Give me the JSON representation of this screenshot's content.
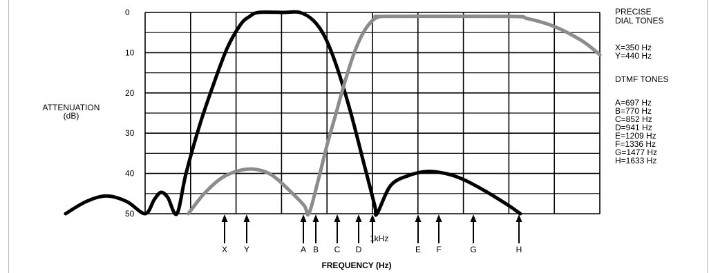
{
  "chart_data": {
    "type": "line",
    "ylabel": "ATTENUATION",
    "ylabel_unit": "(dB)",
    "xlabel": "FREQUENCY (Hz)",
    "y_ticks": [
      "0",
      "10",
      "20",
      "30",
      "40",
      "50"
    ],
    "ylim": [
      0,
      50
    ],
    "y_inverted": true,
    "grid": true,
    "x_markers": [
      "X",
      "Y",
      "A",
      "B",
      "C",
      "D",
      "1kHz",
      "E",
      "F",
      "G",
      "H"
    ],
    "legend_text": {
      "dial_title_1": "PRECISE",
      "dial_title_2": "DIAL TONES",
      "x_tone": "X=350 Hz",
      "y_tone": "Y=440 Hz",
      "dtmf_title": "DTMF TONES",
      "a": "A=697 Hz",
      "b": "B=770 Hz",
      "c": "C=852 Hz",
      "d": "D=941 Hz",
      "e": "E=1209 Hz",
      "f": "F=1336 Hz",
      "g": "G=1477 Hz",
      "h": "H=1633 Hz"
    },
    "series": [
      {
        "color": "#000000",
        "points": [
          [
            -1.75,
            50
          ],
          [
            -1.3,
            47
          ],
          [
            -0.85,
            45.6
          ],
          [
            -0.4,
            47
          ],
          [
            0,
            50
          ],
          [
            0.2,
            46.5
          ],
          [
            0.35,
            44.7
          ],
          [
            0.5,
            46
          ],
          [
            0.7,
            50
          ],
          [
            0.9,
            40
          ],
          [
            1.2,
            28
          ],
          [
            1.5,
            18
          ],
          [
            1.8,
            9
          ],
          [
            2.1,
            3
          ],
          [
            2.3,
            1
          ],
          [
            2.5,
            0
          ],
          [
            3.05,
            0
          ],
          [
            3.4,
            0
          ],
          [
            3.7,
            2
          ],
          [
            3.95,
            6
          ],
          [
            4.2,
            13
          ],
          [
            4.5,
            24
          ],
          [
            4.8,
            37
          ],
          [
            5.05,
            48
          ],
          [
            5.1,
            50
          ],
          [
            5.4,
            43
          ],
          [
            5.8,
            40.5
          ],
          [
            6.2,
            39.5
          ],
          [
            6.6,
            40
          ],
          [
            7,
            41.5
          ],
          [
            7.5,
            44.5
          ],
          [
            8,
            48
          ],
          [
            8.25,
            50
          ]
        ]
      },
      {
        "color": "#8c8c8c",
        "points": [
          [
            0.95,
            50
          ],
          [
            1.3,
            45
          ],
          [
            1.7,
            41
          ],
          [
            2.1,
            39.2
          ],
          [
            2.45,
            39
          ],
          [
            2.8,
            40.5
          ],
          [
            3.2,
            44.5
          ],
          [
            3.5,
            48
          ],
          [
            3.6,
            50
          ],
          [
            3.8,
            42
          ],
          [
            4,
            33
          ],
          [
            4.2,
            25
          ],
          [
            4.4,
            17
          ],
          [
            4.6,
            10
          ],
          [
            4.8,
            5
          ],
          [
            5,
            2
          ],
          [
            5.15,
            1.1
          ],
          [
            5.3,
            1
          ],
          [
            8,
            1
          ],
          [
            8.4,
            1.5
          ],
          [
            9,
            3.5
          ],
          [
            9.6,
            7
          ],
          [
            10,
            10.5
          ]
        ]
      }
    ]
  }
}
